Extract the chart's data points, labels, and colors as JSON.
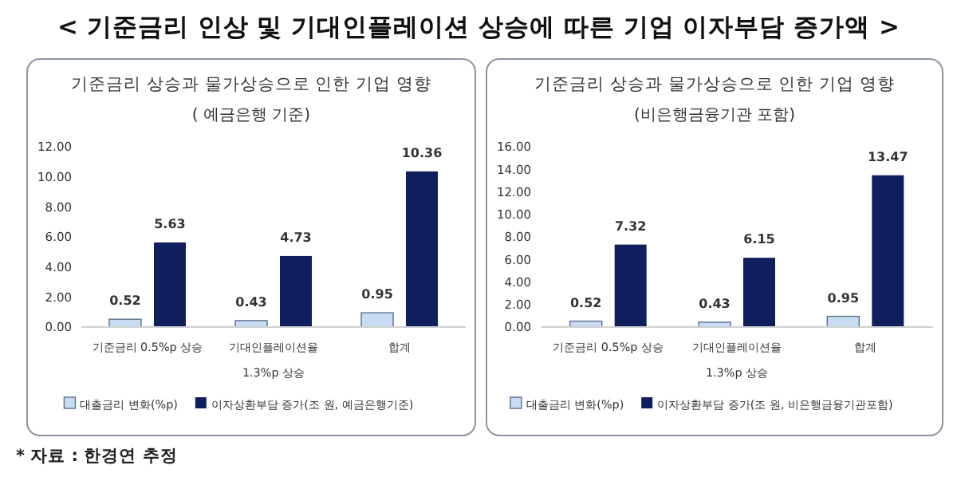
{
  "chart_data": [
    {
      "type": "bar",
      "title": "기준금리 상승과 물가상승으로 인한 기업 영향",
      "subtitle": "( 예금은행 기준)",
      "categories": [
        "기준금리 0.5%p 상승",
        "기대인플레이션율 1.3%p 상승",
        "합계"
      ],
      "series": [
        {
          "name": "대출금리 변화(%p)",
          "color": "#c9ddf2",
          "values": [
            0.52,
            0.43,
            0.95
          ]
        },
        {
          "name": "이자상환부담 증가(조 원, 예금은행기준)",
          "color": "#0f1f5e",
          "values": [
            5.63,
            4.73,
            10.36
          ]
        }
      ],
      "ylim": [
        0,
        12
      ],
      "yticks": [
        {
          "value": 0,
          "label": "0.00"
        },
        {
          "value": 2,
          "label": "2.00"
        },
        {
          "value": 4,
          "label": "4.00"
        },
        {
          "value": 6,
          "label": "6.00"
        },
        {
          "value": 8,
          "label": "8.00"
        },
        {
          "value": 10,
          "label": "10.00"
        },
        {
          "value": 12,
          "label": "12.00"
        }
      ],
      "data_labels": true,
      "legend": "bottom",
      "annotations": [
        "< 기준금리 인상 및 기대인플레이션 상승에 따른 기업 이자부담 증가액 >",
        "* 자료 : 한경연 추정"
      ]
    },
    {
      "type": "bar",
      "title": "기준금리 상승과 물가상승으로 인한 기업 영향",
      "subtitle": "(비은행금융기관 포함)",
      "categories": [
        "기준금리 0.5%p 상승",
        "기대인플레이션율 1.3%p 상승",
        "합계"
      ],
      "series": [
        {
          "name": "대출금리 변화(%p)",
          "color": "#c9ddf2",
          "values": [
            0.52,
            0.43,
            0.95
          ]
        },
        {
          "name": "이자상환부담 증가(조 원, 비은행금융기관포함)",
          "color": "#0f1f5e",
          "values": [
            7.32,
            6.15,
            13.47
          ]
        }
      ],
      "ylim": [
        0,
        16
      ],
      "yticks": [
        {
          "value": 0,
          "label": "0.00"
        },
        {
          "value": 2,
          "label": "2.00"
        },
        {
          "value": 4,
          "label": "4.00"
        },
        {
          "value": 6,
          "label": "6.00"
        },
        {
          "value": 8,
          "label": "8.00"
        },
        {
          "value": 10,
          "label": "10.00"
        },
        {
          "value": 12,
          "label": "12.00"
        },
        {
          "value": 14,
          "label": "14.00"
        },
        {
          "value": 16,
          "label": "16.00"
        }
      ],
      "data_labels": true,
      "legend": "bottom"
    }
  ]
}
